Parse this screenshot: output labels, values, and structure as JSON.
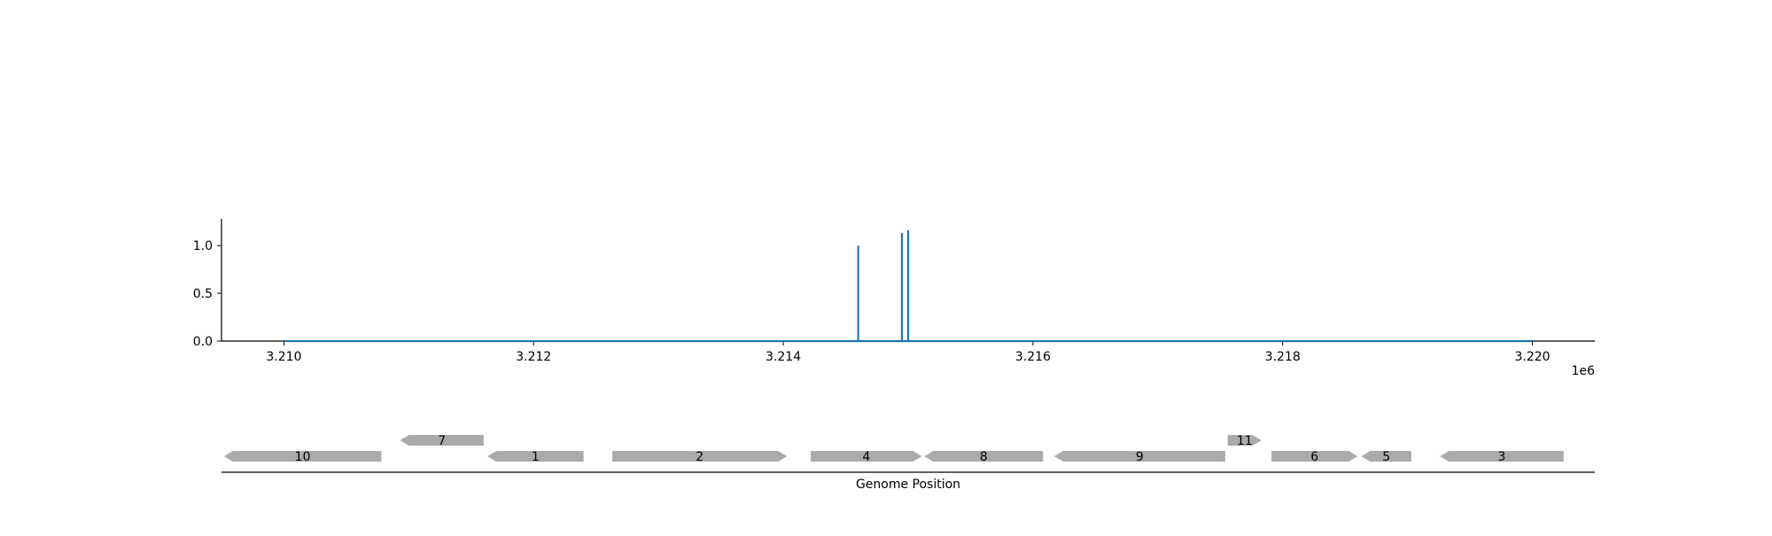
{
  "chart_data": {
    "type": "line",
    "title": "",
    "ylabel": "",
    "xlabel": "Genome Position",
    "x_offset_label": "1e6",
    "x_tick_labels": [
      "3.210",
      "3.212",
      "3.214",
      "3.216",
      "3.218",
      "3.220"
    ],
    "x_ticks": [
      3210000,
      3212000,
      3214000,
      3216000,
      3218000,
      3220000
    ],
    "y_tick_labels": [
      "0.0",
      "0.5",
      "1.0"
    ],
    "y_ticks": [
      0.0,
      0.5,
      1.0
    ],
    "xlim": [
      3209500,
      3220500
    ],
    "ylim": [
      0,
      1.28
    ],
    "grid": false,
    "line_color": "#1f77b4",
    "series": [
      {
        "x": [
          3210000,
          3214600,
          3214600,
          3214600,
          3214950,
          3214950,
          3214950,
          3215000,
          3215000,
          3215000,
          3220000
        ],
        "y": [
          0,
          0,
          1.0,
          0,
          0,
          1.13,
          0,
          0,
          1.16,
          0,
          0
        ]
      }
    ]
  },
  "gene_track": {
    "color": "#aaaaaa",
    "genes": [
      {
        "label": "10",
        "start": 3209520,
        "end": 3210780,
        "strand": -1,
        "row": 0
      },
      {
        "label": "7",
        "start": 3210930,
        "end": 3211600,
        "strand": -1,
        "row": 1
      },
      {
        "label": "1",
        "start": 3211630,
        "end": 3212400,
        "strand": -1,
        "row": 0
      },
      {
        "label": "2",
        "start": 3212630,
        "end": 3214030,
        "strand": 1,
        "row": 0
      },
      {
        "label": "4",
        "start": 3214220,
        "end": 3215110,
        "strand": 1,
        "row": 0
      },
      {
        "label": "8",
        "start": 3215130,
        "end": 3216080,
        "strand": -1,
        "row": 0
      },
      {
        "label": "9",
        "start": 3216170,
        "end": 3217540,
        "strand": -1,
        "row": 0
      },
      {
        "label": "11",
        "start": 3217560,
        "end": 3217830,
        "strand": 1,
        "row": 1
      },
      {
        "label": "6",
        "start": 3217910,
        "end": 3218600,
        "strand": 1,
        "row": 0
      },
      {
        "label": "5",
        "start": 3218630,
        "end": 3219030,
        "strand": -1,
        "row": 0
      },
      {
        "label": "3",
        "start": 3219260,
        "end": 3220250,
        "strand": -1,
        "row": 0
      }
    ]
  }
}
